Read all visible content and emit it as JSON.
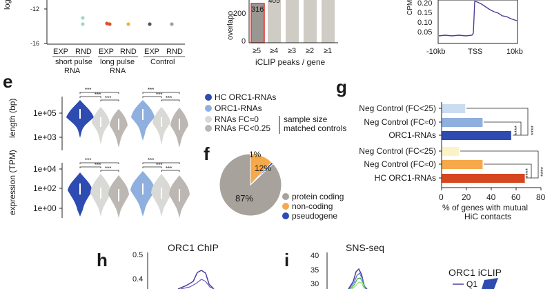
{
  "panel_labels": {
    "e": "e",
    "f": "f",
    "g": "g",
    "h": "h",
    "i": "i"
  },
  "colors": {
    "hc_orc1": "#2d4bb0",
    "orc1": "#8fb0de",
    "fc0": "#d9d9d6",
    "fc025": "#bcb7b2",
    "orange": "#f5a94a",
    "dark_orange": "#d6461f",
    "pale_yellow": "#fbf3c6",
    "pale_blue": "#c9dcf1",
    "purple": "#4a3d9a",
    "green": "#3fae4a",
    "pie_gray": "#a8a29c",
    "red_outline": "#e0352b"
  },
  "top_left": {
    "axis_label": "log",
    "y_ticks": [
      "-12",
      "-16"
    ],
    "x_labels": [
      "EXP",
      "RND",
      "EXP",
      "RND",
      "EXP",
      "RND"
    ],
    "groups": [
      "short pulse",
      "RNA",
      "long pulse",
      "RNA",
      "Control"
    ]
  },
  "top_mid": {
    "ylabel": "overlapp",
    "y_ticks": [
      "200",
      "0"
    ],
    "bar_labels": [
      "316",
      "405"
    ],
    "x_labels": [
      "≥5",
      "≥4",
      "≥3",
      "≥2",
      "≥1"
    ],
    "xlabel": "iCLIP peaks / gene"
  },
  "top_right": {
    "ylabel": "CPM",
    "y_ticks": [
      "0.20",
      "0.15",
      "0.10",
      "0.05"
    ],
    "x_labels": [
      "-10kb",
      "TSS",
      "10kb"
    ]
  },
  "panel_e": {
    "top_ylabel": "length (bp)",
    "top_ticks": [
      "1e+05",
      "1e+03"
    ],
    "bottom_ylabel": "expression (TPM)",
    "bottom_ticks": [
      "1e+04",
      "1e+02",
      "1e+00"
    ],
    "sig": "***",
    "legend": [
      "HC ORC1-RNAs",
      "ORC1-RNAs",
      "RNAs FC≈0",
      "RNAs FC<0.25"
    ],
    "legend_note_1": "sample size",
    "legend_note_2": "matched controls"
  },
  "panel_f": {
    "labels": [
      "1%",
      "12%",
      "87%"
    ],
    "legend": [
      "protein coding",
      "non-coding",
      "pseudogene"
    ]
  },
  "panel_g": {
    "bars": [
      {
        "label": "Neg Control (FC<25)",
        "value": 19
      },
      {
        "label": "Neg Control (FC≈0)",
        "value": 33
      },
      {
        "label": "ORC1-RNAs",
        "value": 56
      },
      {
        "label": "Neg Control (FC<25)",
        "value": 14
      },
      {
        "label": "Neg Control (FC≈0)",
        "value": 33
      },
      {
        "label": "HC ORC1-RNAs",
        "value": 67
      }
    ],
    "x_ticks": [
      "0",
      "20",
      "40",
      "60",
      "80"
    ],
    "xlabel_1": "% of genes with mutual",
    "xlabel_2": "HiC contacts",
    "sig": "****"
  },
  "panel_h": {
    "title": "ORC1 ChIP",
    "y_ticks": [
      "0.5",
      "0.4"
    ]
  },
  "panel_i": {
    "title": "SNS-seq",
    "y_ticks": [
      "40",
      "35",
      "30"
    ],
    "legend_title": "ORC1 iCLIP",
    "legend_q1": "Q1"
  }
}
